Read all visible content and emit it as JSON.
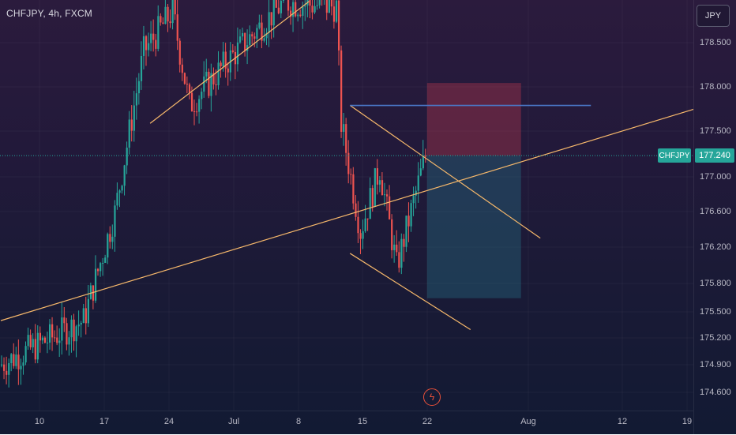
{
  "header": {
    "symbol_label": "CHFJPY, 4h, FXCM",
    "currency_button": "JPY"
  },
  "axis": {
    "price_ticks": [
      "178.500",
      "178.000",
      "177.500",
      "177.000",
      "176.600",
      "176.200",
      "175.800",
      "175.500",
      "175.200",
      "174.900",
      "174.600"
    ],
    "time_ticks": [
      "10",
      "17",
      "24",
      "Jul",
      "8",
      "15",
      "22",
      "Aug",
      "12",
      "19"
    ]
  },
  "current_price": {
    "symbol": "CHFJPY",
    "value": "177.240"
  },
  "colors": {
    "up": "#26a69a",
    "down": "#ef5350",
    "trendline": "#f6b86b",
    "blue_line": "#4a78c8",
    "stop_zone": "rgba(200,60,80,0.35)",
    "target_zone": "rgba(40,120,140,0.35)"
  },
  "chart_data": {
    "type": "candlestick",
    "symbol": "CHFJPY",
    "timeframe": "4h",
    "source": "FXCM",
    "ylim": [
      174.45,
      178.9
    ],
    "xlabels": [
      "10",
      "17",
      "24",
      "Jul",
      "8",
      "15",
      "22",
      "Aug",
      "12",
      "19"
    ],
    "current_price": 177.24,
    "phases": [
      {
        "start_bar": 0,
        "end_bar": 35,
        "start_price": 174.9,
        "end_price": 175.4
      },
      {
        "start_bar": 35,
        "end_bar": 48,
        "start_price": 175.4,
        "end_price": 176.6
      },
      {
        "start_bar": 48,
        "end_bar": 60,
        "start_price": 176.6,
        "end_price": 178.4
      },
      {
        "start_bar": 60,
        "end_bar": 72,
        "start_price": 178.4,
        "end_price": 178.85
      },
      {
        "start_bar": 72,
        "end_bar": 79,
        "start_price": 178.85,
        "end_price": 177.8
      },
      {
        "start_bar": 79,
        "end_bar": 95,
        "start_price": 177.8,
        "end_price": 178.3
      },
      {
        "start_bar": 95,
        "end_bar": 118,
        "start_price": 178.3,
        "end_price": 178.95
      },
      {
        "start_bar": 118,
        "end_bar": 140,
        "start_price": 178.95,
        "end_price": 178.9
      },
      {
        "start_bar": 140,
        "end_bar": 142,
        "start_price": 178.9,
        "end_price": 177.6
      },
      {
        "start_bar": 142,
        "end_bar": 150,
        "start_price": 177.6,
        "end_price": 176.4
      },
      {
        "start_bar": 150,
        "end_bar": 158,
        "start_price": 176.4,
        "end_price": 177.1
      },
      {
        "start_bar": 158,
        "end_bar": 165,
        "start_price": 177.1,
        "end_price": 176.0
      },
      {
        "start_bar": 165,
        "end_bar": 177,
        "start_price": 176.0,
        "end_price": 177.24
      }
    ],
    "bars": 177,
    "first_bar_date": "Jun 6",
    "bars_per_day": 6,
    "overlays": {
      "support_trendline": [
        {
          "bar": 0,
          "price": 175.4
        },
        {
          "bar": 288,
          "price": 177.76
        }
      ],
      "flag_upper": [
        {
          "bar": 145,
          "price": 177.8
        },
        {
          "bar": 224,
          "price": 176.32
        }
      ],
      "flag_lower": [
        {
          "bar": 145,
          "price": 176.15
        },
        {
          "bar": 195,
          "price": 175.3
        }
      ],
      "upper_channel": [
        {
          "bar": 62,
          "price": 177.6
        },
        {
          "bar": 128,
          "price": 178.96
        }
      ],
      "blue_level": {
        "from_bar": 145,
        "to_bar": 245,
        "price": 177.8
      },
      "short_position": {
        "from_bar": 177,
        "to_bar": 216,
        "entry": 177.24,
        "stop": 178.05,
        "target": 175.65
      }
    }
  }
}
